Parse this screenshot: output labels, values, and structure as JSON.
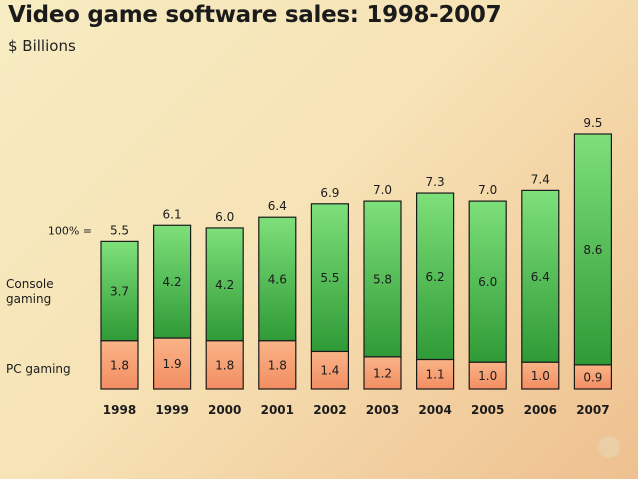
{
  "chart_data": {
    "type": "bar",
    "stacked": true,
    "title": "Video game software sales: 1998-2007",
    "subtitle": "$ Billions",
    "categories": [
      "1998",
      "1999",
      "2000",
      "2001",
      "2002",
      "2003",
      "2004",
      "2005",
      "2006",
      "2007"
    ],
    "series": [
      {
        "name": "PC gaming",
        "values": [
          1.8,
          1.9,
          1.8,
          1.8,
          1.4,
          1.2,
          1.1,
          1.0,
          1.0,
          0.9
        ],
        "labels": [
          "1.8",
          "1.9",
          "1.8",
          "1.8",
          "1.4",
          "1.2",
          "1.1",
          "1.0",
          "1.0",
          "0.9"
        ],
        "color": "#f7a878"
      },
      {
        "name": "Console gaming",
        "values": [
          3.7,
          4.2,
          4.2,
          4.6,
          5.5,
          5.8,
          6.2,
          6.0,
          6.4,
          8.6
        ],
        "labels": [
          "3.7",
          "4.2",
          "4.2",
          "4.6",
          "5.5",
          "5.8",
          "6.2",
          "6.0",
          "6.4",
          "8.6"
        ],
        "color": "#5cc45c"
      }
    ],
    "totals": [
      5.5,
      6.1,
      6.0,
      6.4,
      6.9,
      7.0,
      7.3,
      7.0,
      7.4,
      9.5
    ],
    "total_labels": [
      "5.5",
      "6.1",
      "6.0",
      "6.4",
      "6.9",
      "7.0",
      "7.3",
      "7.0",
      "7.4",
      "9.5"
    ],
    "total_label_prefix": "100% =",
    "row_labels": {
      "console": "Console\ngaming",
      "pc": "PC gaming"
    },
    "xlabel": "",
    "ylabel": "",
    "ylim": [
      0,
      9.5
    ],
    "grid": false,
    "legend": "none"
  }
}
